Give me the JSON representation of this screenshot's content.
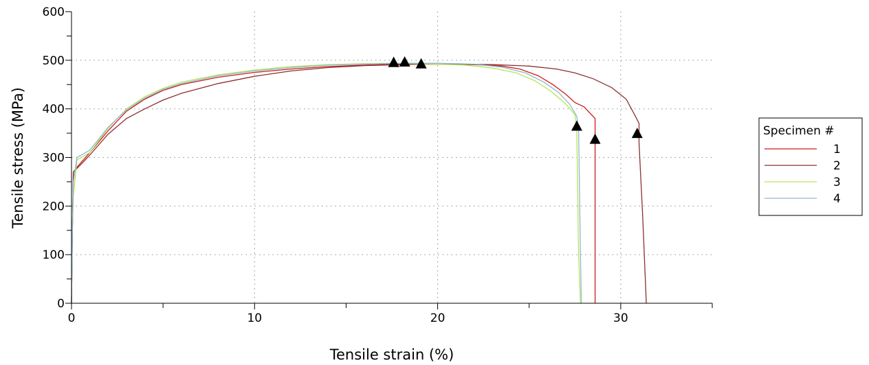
{
  "chart_data": {
    "type": "line",
    "title": "",
    "xlabel": "Tensile strain (%)",
    "ylabel": "Tensile stress (MPa)",
    "xlim": [
      0,
      35
    ],
    "ylim": [
      0,
      600
    ],
    "x_ticks": [
      "0",
      "10",
      "20",
      "30"
    ],
    "y_ticks": [
      "0",
      "100",
      "200",
      "300",
      "400",
      "500",
      "600"
    ],
    "grid": true,
    "legend": {
      "title": "Specimen #",
      "placement": "right"
    },
    "series": [
      {
        "name": "1",
        "color": "#cc1b1b",
        "points": [
          [
            0,
            0
          ],
          [
            0.05,
            150
          ],
          [
            0.1,
            270
          ],
          [
            0.3,
            280
          ],
          [
            1,
            310
          ],
          [
            2,
            355
          ],
          [
            3,
            395
          ],
          [
            4,
            420
          ],
          [
            5,
            438
          ],
          [
            6,
            450
          ],
          [
            8,
            465
          ],
          [
            10,
            475
          ],
          [
            12,
            482
          ],
          [
            14,
            487
          ],
          [
            16,
            490
          ],
          [
            17.6,
            492
          ],
          [
            20,
            492
          ],
          [
            22,
            491
          ],
          [
            23.5,
            488
          ],
          [
            24.5,
            482
          ],
          [
            25.5,
            468
          ],
          [
            26.3,
            450
          ],
          [
            27,
            430
          ],
          [
            27.5,
            413
          ],
          [
            28,
            404
          ],
          [
            28.6,
            380
          ],
          [
            28.6,
            0
          ]
        ],
        "markers": [
          [
            17.6,
            496
          ],
          [
            28.6,
            338
          ]
        ]
      },
      {
        "name": "2",
        "color": "#8b2e2e",
        "points": [
          [
            0,
            0
          ],
          [
            0.05,
            150
          ],
          [
            0.1,
            270
          ],
          [
            0.5,
            285
          ],
          [
            1,
            305
          ],
          [
            2,
            348
          ],
          [
            3,
            380
          ],
          [
            4,
            400
          ],
          [
            5,
            418
          ],
          [
            6,
            432
          ],
          [
            8,
            452
          ],
          [
            10,
            467
          ],
          [
            12,
            478
          ],
          [
            14,
            485
          ],
          [
            16,
            489
          ],
          [
            18,
            491
          ],
          [
            19.1,
            492
          ],
          [
            21,
            492
          ],
          [
            23,
            491
          ],
          [
            25,
            488
          ],
          [
            26.5,
            482
          ],
          [
            27.5,
            474
          ],
          [
            28.5,
            462
          ],
          [
            29.5,
            444
          ],
          [
            30.3,
            420
          ],
          [
            30.8,
            385
          ],
          [
            31,
            370
          ],
          [
            31,
            330
          ],
          [
            31.2,
            180
          ],
          [
            31.4,
            0
          ]
        ],
        "markers": [
          [
            19.1,
            493
          ],
          [
            30.9,
            350
          ]
        ]
      },
      {
        "name": "3",
        "color": "#b3e65b",
        "points": [
          [
            0,
            75
          ],
          [
            0.05,
            160
          ],
          [
            0.1,
            220
          ],
          [
            0.3,
            295
          ],
          [
            1,
            310
          ],
          [
            2,
            360
          ],
          [
            3,
            400
          ],
          [
            4,
            425
          ],
          [
            5,
            442
          ],
          [
            6,
            455
          ],
          [
            8,
            470
          ],
          [
            10,
            480
          ],
          [
            12,
            487
          ],
          [
            14,
            491
          ],
          [
            16,
            493
          ],
          [
            17.6,
            494
          ],
          [
            20,
            492
          ],
          [
            21.5,
            490
          ],
          [
            23,
            484
          ],
          [
            24.3,
            474
          ],
          [
            25.3,
            458
          ],
          [
            26.2,
            436
          ],
          [
            27,
            410
          ],
          [
            27.5,
            388
          ],
          [
            27.6,
            360
          ],
          [
            27.7,
            100
          ],
          [
            27.8,
            0
          ]
        ],
        "markers": [
          [
            17.6,
            496
          ],
          [
            27.6,
            365
          ]
        ]
      },
      {
        "name": "4",
        "color": "#8fb7cc",
        "points": [
          [
            0,
            0
          ],
          [
            0.05,
            150
          ],
          [
            0.1,
            250
          ],
          [
            0.3,
            300
          ],
          [
            1,
            315
          ],
          [
            2,
            362
          ],
          [
            3,
            398
          ],
          [
            4,
            422
          ],
          [
            5,
            440
          ],
          [
            6,
            452
          ],
          [
            8,
            468
          ],
          [
            10,
            478
          ],
          [
            12,
            485
          ],
          [
            14,
            490
          ],
          [
            16,
            492
          ],
          [
            18.2,
            494
          ],
          [
            20,
            494
          ],
          [
            22,
            492
          ],
          [
            23.5,
            486
          ],
          [
            24.8,
            474
          ],
          [
            25.8,
            455
          ],
          [
            26.6,
            434
          ],
          [
            27.2,
            410
          ],
          [
            27.6,
            385
          ],
          [
            27.7,
            360
          ],
          [
            27.8,
            100
          ],
          [
            27.85,
            0
          ]
        ],
        "markers": [
          [
            18.2,
            497
          ]
        ]
      }
    ]
  }
}
